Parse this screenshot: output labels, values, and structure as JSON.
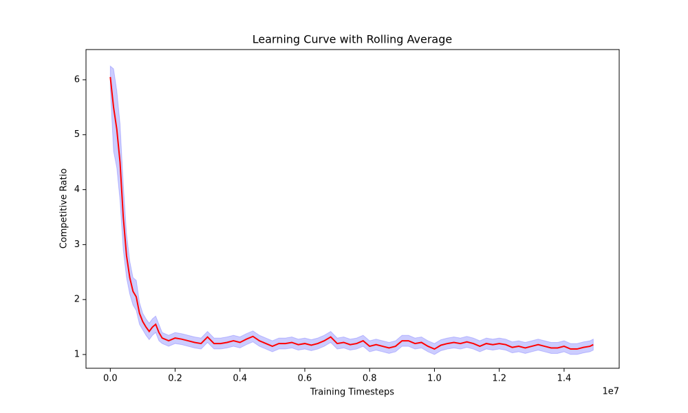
{
  "chart_data": {
    "type": "line_band",
    "title": "Learning Curve with Rolling Average",
    "x_label": "Training Timesteps",
    "y_label": "Competitive Ratio",
    "x_offset_label": "1e7",
    "xlim": [
      -750000,
      15700000
    ],
    "ylim": [
      0.75,
      6.55
    ],
    "xticks": [
      {
        "value": 0,
        "label": "0.0"
      },
      {
        "value": 2000000,
        "label": "0.2"
      },
      {
        "value": 4000000,
        "label": "0.4"
      },
      {
        "value": 6000000,
        "label": "0.6"
      },
      {
        "value": 8000000,
        "label": "0.8"
      },
      {
        "value": 10000000,
        "label": "1.0"
      },
      {
        "value": 12000000,
        "label": "1.2"
      },
      {
        "value": 14000000,
        "label": "1.4"
      }
    ],
    "yticks": [
      1,
      2,
      3,
      4,
      5,
      6
    ],
    "x": [
      0,
      100000,
      200000,
      300000,
      400000,
      500000,
      600000,
      700000,
      800000,
      900000,
      1000000,
      1100000,
      1200000,
      1300000,
      1400000,
      1500000,
      1600000,
      1800000,
      2000000,
      2200000,
      2400000,
      2600000,
      2800000,
      3000000,
      3200000,
      3400000,
      3600000,
      3800000,
      4000000,
      4200000,
      4400000,
      4600000,
      4800000,
      5000000,
      5200000,
      5400000,
      5600000,
      5800000,
      6000000,
      6200000,
      6400000,
      6600000,
      6800000,
      7000000,
      7200000,
      7400000,
      7600000,
      7800000,
      8000000,
      8200000,
      8400000,
      8600000,
      8800000,
      9000000,
      9200000,
      9400000,
      9600000,
      9800000,
      10000000,
      10200000,
      10400000,
      10600000,
      10800000,
      11000000,
      11200000,
      11400000,
      11600000,
      11800000,
      12000000,
      12200000,
      12400000,
      12600000,
      12800000,
      13000000,
      13200000,
      13400000,
      13600000,
      13800000,
      14000000,
      14200000,
      14400000,
      14600000,
      14800000,
      14900000
    ],
    "series": [
      {
        "color": "#ff0000",
        "band_color": "#0000ff",
        "values": [
          6.05,
          5.5,
          5.1,
          4.5,
          3.5,
          2.8,
          2.4,
          2.15,
          2.05,
          1.75,
          1.6,
          1.5,
          1.42,
          1.5,
          1.55,
          1.4,
          1.3,
          1.25,
          1.3,
          1.28,
          1.25,
          1.22,
          1.2,
          1.32,
          1.2,
          1.2,
          1.22,
          1.25,
          1.22,
          1.28,
          1.33,
          1.25,
          1.2,
          1.15,
          1.2,
          1.2,
          1.22,
          1.18,
          1.2,
          1.17,
          1.2,
          1.25,
          1.32,
          1.2,
          1.22,
          1.18,
          1.2,
          1.25,
          1.15,
          1.18,
          1.15,
          1.12,
          1.15,
          1.25,
          1.25,
          1.2,
          1.22,
          1.15,
          1.1,
          1.17,
          1.2,
          1.22,
          1.2,
          1.23,
          1.2,
          1.15,
          1.2,
          1.18,
          1.2,
          1.18,
          1.13,
          1.15,
          1.12,
          1.15,
          1.18,
          1.15,
          1.12,
          1.12,
          1.15,
          1.1,
          1.1,
          1.13,
          1.15,
          1.18
        ],
        "lower": [
          5.85,
          4.7,
          4.4,
          3.8,
          2.9,
          2.4,
          2.1,
          1.9,
          1.8,
          1.55,
          1.45,
          1.35,
          1.27,
          1.35,
          1.4,
          1.25,
          1.2,
          1.15,
          1.2,
          1.18,
          1.15,
          1.12,
          1.1,
          1.22,
          1.1,
          1.1,
          1.12,
          1.15,
          1.12,
          1.18,
          1.23,
          1.15,
          1.1,
          1.05,
          1.1,
          1.1,
          1.12,
          1.08,
          1.1,
          1.07,
          1.1,
          1.15,
          1.22,
          1.1,
          1.12,
          1.08,
          1.1,
          1.15,
          1.05,
          1.08,
          1.05,
          1.02,
          1.05,
          1.15,
          1.15,
          1.1,
          1.12,
          1.05,
          1.0,
          1.07,
          1.1,
          1.12,
          1.1,
          1.13,
          1.1,
          1.05,
          1.1,
          1.08,
          1.1,
          1.08,
          1.03,
          1.05,
          1.02,
          1.05,
          1.08,
          1.05,
          1.02,
          1.02,
          1.05,
          1.0,
          1.0,
          1.03,
          1.05,
          1.08
        ],
        "upper": [
          6.25,
          6.2,
          5.8,
          5.2,
          4.1,
          3.2,
          2.7,
          2.4,
          2.35,
          1.95,
          1.75,
          1.65,
          1.57,
          1.65,
          1.7,
          1.55,
          1.4,
          1.35,
          1.4,
          1.38,
          1.35,
          1.32,
          1.3,
          1.42,
          1.3,
          1.3,
          1.32,
          1.35,
          1.32,
          1.38,
          1.43,
          1.35,
          1.3,
          1.25,
          1.3,
          1.3,
          1.32,
          1.28,
          1.3,
          1.27,
          1.3,
          1.35,
          1.42,
          1.3,
          1.32,
          1.28,
          1.3,
          1.35,
          1.25,
          1.28,
          1.25,
          1.22,
          1.25,
          1.35,
          1.35,
          1.3,
          1.32,
          1.25,
          1.2,
          1.27,
          1.3,
          1.32,
          1.3,
          1.33,
          1.3,
          1.25,
          1.3,
          1.28,
          1.3,
          1.28,
          1.23,
          1.25,
          1.22,
          1.25,
          1.28,
          1.25,
          1.22,
          1.22,
          1.25,
          1.2,
          1.2,
          1.23,
          1.25,
          1.28
        ]
      }
    ]
  }
}
